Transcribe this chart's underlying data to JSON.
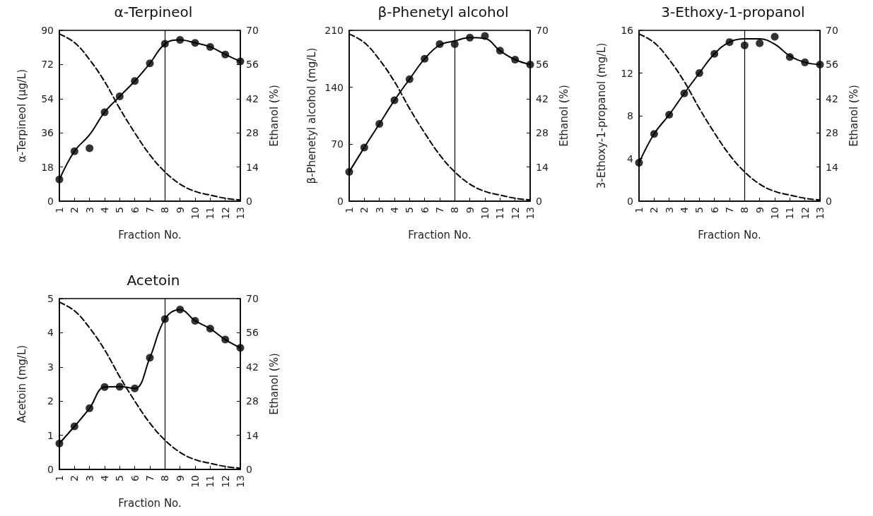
{
  "chart_data": [
    {
      "type": "scatter",
      "title": "α-Terpineol",
      "xlabel": "Fraction No.",
      "ylabel": "α-Terpineol (μg/L)",
      "y2label": "Ethanol (%)",
      "xlim": [
        1,
        13
      ],
      "xticks": [
        1,
        2,
        3,
        4,
        5,
        6,
        7,
        8,
        9,
        10,
        11,
        12,
        13
      ],
      "ylim": [
        0,
        90
      ],
      "yticks": [
        0,
        18,
        36,
        54,
        72,
        90
      ],
      "y2lim": [
        0,
        70
      ],
      "y2ticks": [
        0,
        14,
        28,
        42,
        56,
        70
      ],
      "grid": false,
      "ref_lines": [
        {
          "axis": "x",
          "value": 8,
          "color": "#000000"
        }
      ],
      "series": [
        {
          "marker": "circle",
          "color": "#000000",
          "x": [
            1,
            2,
            3,
            4,
            5,
            6,
            7,
            8,
            9,
            10,
            11,
            12,
            13
          ],
          "values": [
            11.4,
            26.3,
            27.9,
            46.9,
            55.2,
            63.3,
            72.6,
            82.9,
            85,
            83.4,
            81.3,
            77.3,
            73.6
          ]
        },
        {
          "type": "line",
          "marker": "none",
          "line_style": "solid",
          "color": "#000000",
          "x": [
            1,
            2,
            3,
            4,
            5,
            6,
            7,
            8,
            9,
            10,
            11,
            12,
            13
          ],
          "values": [
            11.4,
            26.3,
            35,
            46.9,
            55.2,
            63.3,
            72.6,
            82.9,
            85,
            83.4,
            81.3,
            77.3,
            73.6
          ]
        },
        {
          "type": "line",
          "marker": "none",
          "line_style": "dashed",
          "axis": "y2",
          "color": "#000000",
          "x": [
            1,
            2,
            3,
            4,
            5,
            6,
            7,
            8,
            9,
            10,
            11,
            12,
            13
          ],
          "values": [
            68.5,
            65,
            58,
            49,
            38,
            28,
            19,
            12,
            7,
            4,
            2.5,
            1.2,
            0.5
          ]
        }
      ]
    },
    {
      "type": "scatter",
      "title": "β-Phenetyl alcohol",
      "xlabel": "Fraction No.",
      "ylabel": "β-Phenetyl alcohol (mg/L)",
      "y2label": "Ethanol (%)",
      "xlim": [
        1,
        13
      ],
      "xticks": [
        1,
        2,
        3,
        4,
        5,
        6,
        7,
        8,
        9,
        10,
        11,
        12,
        13
      ],
      "ylim": [
        0,
        210
      ],
      "yticks": [
        0,
        70,
        140,
        210
      ],
      "y2lim": [
        0,
        70
      ],
      "y2ticks": [
        0,
        14,
        28,
        42,
        56,
        70
      ],
      "grid": false,
      "ref_lines": [
        {
          "axis": "x",
          "value": 8,
          "color": "#000000"
        }
      ],
      "series": [
        {
          "marker": "circle",
          "color": "#000000",
          "x": [
            1,
            2,
            3,
            4,
            5,
            6,
            7,
            8,
            9,
            10,
            11,
            12,
            13
          ],
          "values": [
            36,
            66,
            95,
            124,
            150,
            175,
            193,
            193,
            201,
            203,
            185,
            174,
            168
          ]
        },
        {
          "type": "line",
          "marker": "none",
          "line_style": "solid",
          "color": "#000000",
          "x": [
            1,
            2,
            3,
            4,
            5,
            6,
            7,
            8,
            9,
            10,
            11,
            12,
            13
          ],
          "values": [
            36,
            66,
            95,
            124,
            150,
            175,
            192,
            197,
            201,
            200,
            185,
            174,
            168
          ]
        },
        {
          "type": "line",
          "marker": "none",
          "line_style": "dashed",
          "axis": "y2",
          "color": "#000000",
          "x": [
            1,
            2,
            3,
            4,
            5,
            6,
            7,
            8,
            9,
            10,
            11,
            12,
            13
          ],
          "values": [
            68.5,
            65,
            58,
            49,
            38,
            28,
            19,
            12,
            7,
            4,
            2.5,
            1.2,
            0.5
          ]
        }
      ]
    },
    {
      "type": "scatter",
      "title": "3-Ethoxy-1-propanol",
      "xlabel": "Fraction No.",
      "ylabel": "3-Ethoxy-1-propanol (mg/L)",
      "y2label": "Ethanol (%)",
      "xlim": [
        1,
        13
      ],
      "xticks": [
        1,
        2,
        3,
        4,
        5,
        6,
        7,
        8,
        9,
        10,
        11,
        12,
        13
      ],
      "ylim": [
        0,
        16
      ],
      "yticks": [
        0,
        4,
        8,
        12,
        16
      ],
      "y2lim": [
        0,
        70
      ],
      "y2ticks": [
        0,
        14,
        28,
        42,
        56,
        70
      ],
      "grid": false,
      "ref_lines": [
        {
          "axis": "x",
          "value": 8,
          "color": "#000000"
        }
      ],
      "series": [
        {
          "marker": "circle",
          "color": "#000000",
          "x": [
            1,
            2,
            3,
            4,
            5,
            6,
            7,
            8,
            9,
            10,
            11,
            12,
            13
          ],
          "values": [
            3.6,
            6.3,
            8.1,
            10.1,
            12,
            13.8,
            14.9,
            14.6,
            14.8,
            15.4,
            13.5,
            13,
            12.8
          ]
        },
        {
          "type": "line",
          "marker": "none",
          "line_style": "solid",
          "color": "#000000",
          "x": [
            1,
            2,
            3,
            4,
            5,
            6,
            7,
            8,
            9,
            10,
            11,
            12,
            13
          ],
          "values": [
            3.6,
            6.3,
            8.1,
            10.1,
            12,
            13.8,
            14.9,
            15.2,
            15.2,
            14.7,
            13.6,
            13,
            12.8
          ]
        },
        {
          "type": "line",
          "marker": "none",
          "line_style": "dashed",
          "axis": "y2",
          "color": "#000000",
          "x": [
            1,
            2,
            3,
            4,
            5,
            6,
            7,
            8,
            9,
            10,
            11,
            12,
            13
          ],
          "values": [
            68.5,
            65,
            58,
            49,
            38,
            28,
            19,
            12,
            7,
            4,
            2.5,
            1.2,
            0.5
          ]
        }
      ]
    },
    {
      "type": "scatter",
      "title": "Acetoin",
      "xlabel": "Fraction No.",
      "ylabel": "Acetoin (mg/L)",
      "y2label": "Ethanol (%)",
      "xlim": [
        1,
        13
      ],
      "xticks": [
        1,
        2,
        3,
        4,
        5,
        6,
        7,
        8,
        9,
        10,
        11,
        12,
        13
      ],
      "ylim": [
        0,
        5
      ],
      "yticks": [
        0,
        1,
        2,
        3,
        4,
        5
      ],
      "y2lim": [
        0,
        70
      ],
      "y2ticks": [
        0,
        14,
        28,
        42,
        56,
        70
      ],
      "grid": false,
      "ref_lines": [
        {
          "axis": "x",
          "value": 8,
          "color": "#000000"
        }
      ],
      "series": [
        {
          "marker": "circle",
          "color": "#000000",
          "x": [
            1,
            2,
            3,
            4,
            5,
            6,
            7,
            8,
            9,
            10,
            11,
            12,
            13
          ],
          "values": [
            0.76,
            1.26,
            1.79,
            2.41,
            2.42,
            2.37,
            3.27,
            4.4,
            4.68,
            4.35,
            4.12,
            3.8,
            3.56
          ]
        },
        {
          "type": "line",
          "marker": "none",
          "line_style": "solid",
          "color": "#000000",
          "x": [
            1,
            2,
            3,
            4,
            5,
            6,
            7,
            8,
            9,
            10,
            11,
            12,
            13
          ],
          "values": [
            0.76,
            1.26,
            1.79,
            2.41,
            2.42,
            2.37,
            3.27,
            4.4,
            4.68,
            4.35,
            4.12,
            3.8,
            3.56
          ]
        },
        {
          "type": "line",
          "marker": "none",
          "line_style": "dashed",
          "axis": "y2",
          "color": "#000000",
          "x": [
            1,
            2,
            3,
            4,
            5,
            6,
            7,
            8,
            9,
            10,
            11,
            12,
            13
          ],
          "values": [
            68.5,
            65,
            58,
            49,
            38,
            28,
            19,
            12,
            7,
            4,
            2.5,
            1.2,
            0.5
          ]
        }
      ]
    }
  ]
}
